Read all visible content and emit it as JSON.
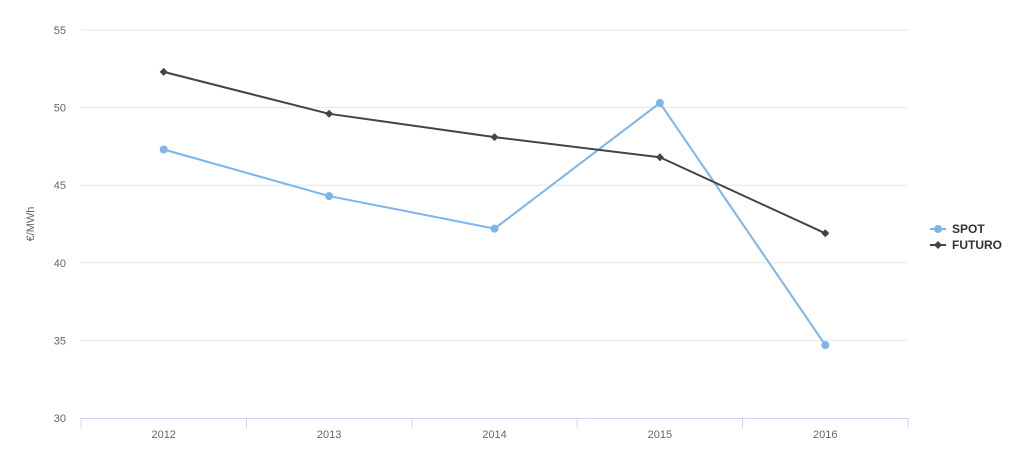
{
  "chart_data": {
    "type": "line",
    "title": "",
    "xlabel": "",
    "ylabel": "€/MWh",
    "categories": [
      "2012",
      "2013",
      "2014",
      "2015",
      "2016"
    ],
    "ylim": [
      30,
      55
    ],
    "yticks": [
      "30",
      "35",
      "40",
      "45",
      "50",
      "55"
    ],
    "grid": true,
    "legend_position": "right",
    "series": [
      {
        "name": "SPOT",
        "values": [
          47.3,
          44.3,
          42.2,
          50.3,
          34.7
        ],
        "color": "#7cb5ec",
        "marker": "circle"
      },
      {
        "name": "FUTURO",
        "values": [
          52.3,
          49.6,
          48.1,
          46.8,
          41.9
        ],
        "color": "#434348",
        "marker": "diamond"
      }
    ]
  }
}
